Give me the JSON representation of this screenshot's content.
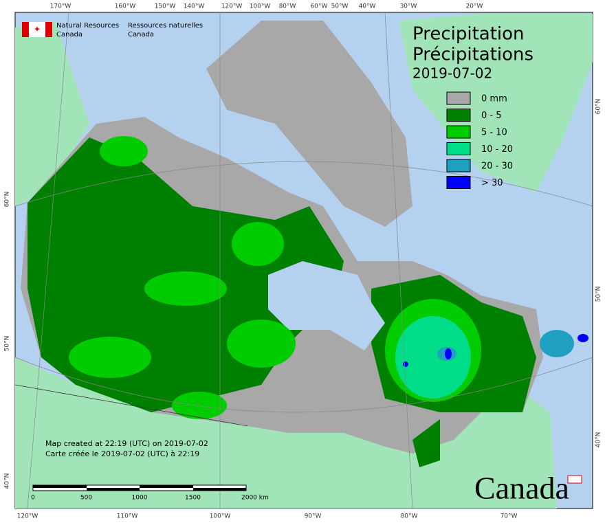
{
  "header": {
    "org_en": [
      "Natural Resources",
      "Canada"
    ],
    "org_fr": [
      "Ressources naturelles",
      "Canada"
    ]
  },
  "title": {
    "lines": [
      "Precipitation",
      "Précipitations"
    ],
    "date": "2019-07-02"
  },
  "legend": [
    {
      "label": "0 mm",
      "color": "#a8a8a8"
    },
    {
      "label": "0 - 5",
      "color": "#008000"
    },
    {
      "label": "5 - 10",
      "color": "#00cc00"
    },
    {
      "label": "10 - 20",
      "color": "#00dd88"
    },
    {
      "label": "20 - 30",
      "color": "#20a0c0"
    },
    {
      "label": "> 30",
      "color": "#0000ff"
    }
  ],
  "graticule": {
    "top": [
      "170°W",
      "160°W",
      "150°W",
      "140°W",
      "120°W",
      "100°W",
      "80°W",
      "60°W",
      "50°W",
      "40°W",
      "30°W",
      "20°W"
    ],
    "bottom": [
      "120°W",
      "110°W",
      "100°W",
      "90°W",
      "80°W",
      "70°W"
    ],
    "left": [
      "60°N",
      "50°N",
      "40°N"
    ],
    "right": [
      "60°N",
      "50°N",
      "40°N"
    ]
  },
  "notes": [
    "Map created at 22:19 (UTC) on 2019-07-02",
    "Carte créée le 2019-07-02 (UTC) à 22:19"
  ],
  "scale_bar": [
    "0",
    "500",
    "1000",
    "1500",
    "2000 km"
  ],
  "wordmark": "Canada"
}
